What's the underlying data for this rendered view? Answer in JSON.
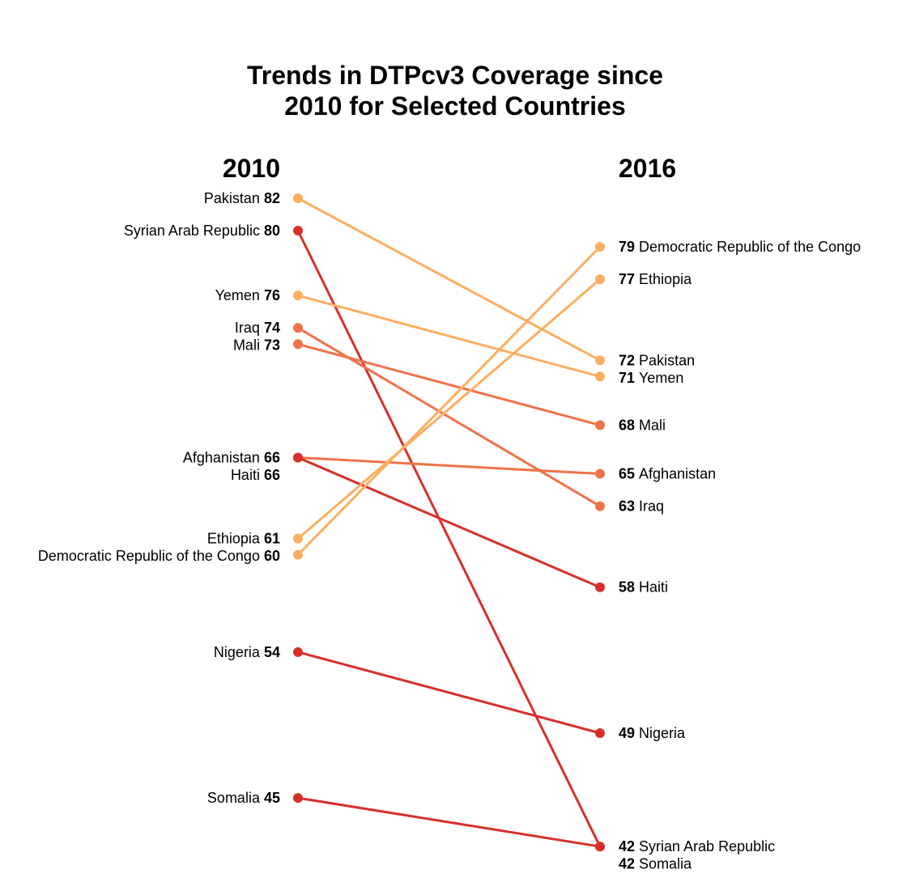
{
  "chart_data": {
    "type": "slope",
    "title_lines": [
      "Trends in DTPcv3 Coverage since",
      "2010 for Selected Countries"
    ],
    "left_header": "2010",
    "right_header": "2016",
    "grid": false,
    "series": [
      {
        "name": "Pakistan",
        "start": 82,
        "end": 72,
        "color": "#fdae61"
      },
      {
        "name": "Syrian Arab Republic",
        "start": 80,
        "end": 42,
        "color": "#d7302a"
      },
      {
        "name": "Yemen",
        "start": 76,
        "end": 71,
        "color": "#fdae61"
      },
      {
        "name": "Iraq",
        "start": 74,
        "end": 63,
        "color": "#f07249"
      },
      {
        "name": "Mali",
        "start": 73,
        "end": 68,
        "color": "#f07249"
      },
      {
        "name": "Afghanistan",
        "start": 66,
        "end": 65,
        "color": "#f07249"
      },
      {
        "name": "Haiti",
        "start": 66,
        "end": 58,
        "color": "#d7302a"
      },
      {
        "name": "Ethiopia",
        "start": 61,
        "end": 77,
        "color": "#fdae61"
      },
      {
        "name": "Democratic Republic of the Congo",
        "start": 60,
        "end": 79,
        "color": "#fdae61"
      },
      {
        "name": "Nigeria",
        "start": 54,
        "end": 49,
        "color": "#d7302a"
      },
      {
        "name": "Somalia",
        "start": 45,
        "end": 42,
        "color": "#d7302a"
      }
    ]
  }
}
